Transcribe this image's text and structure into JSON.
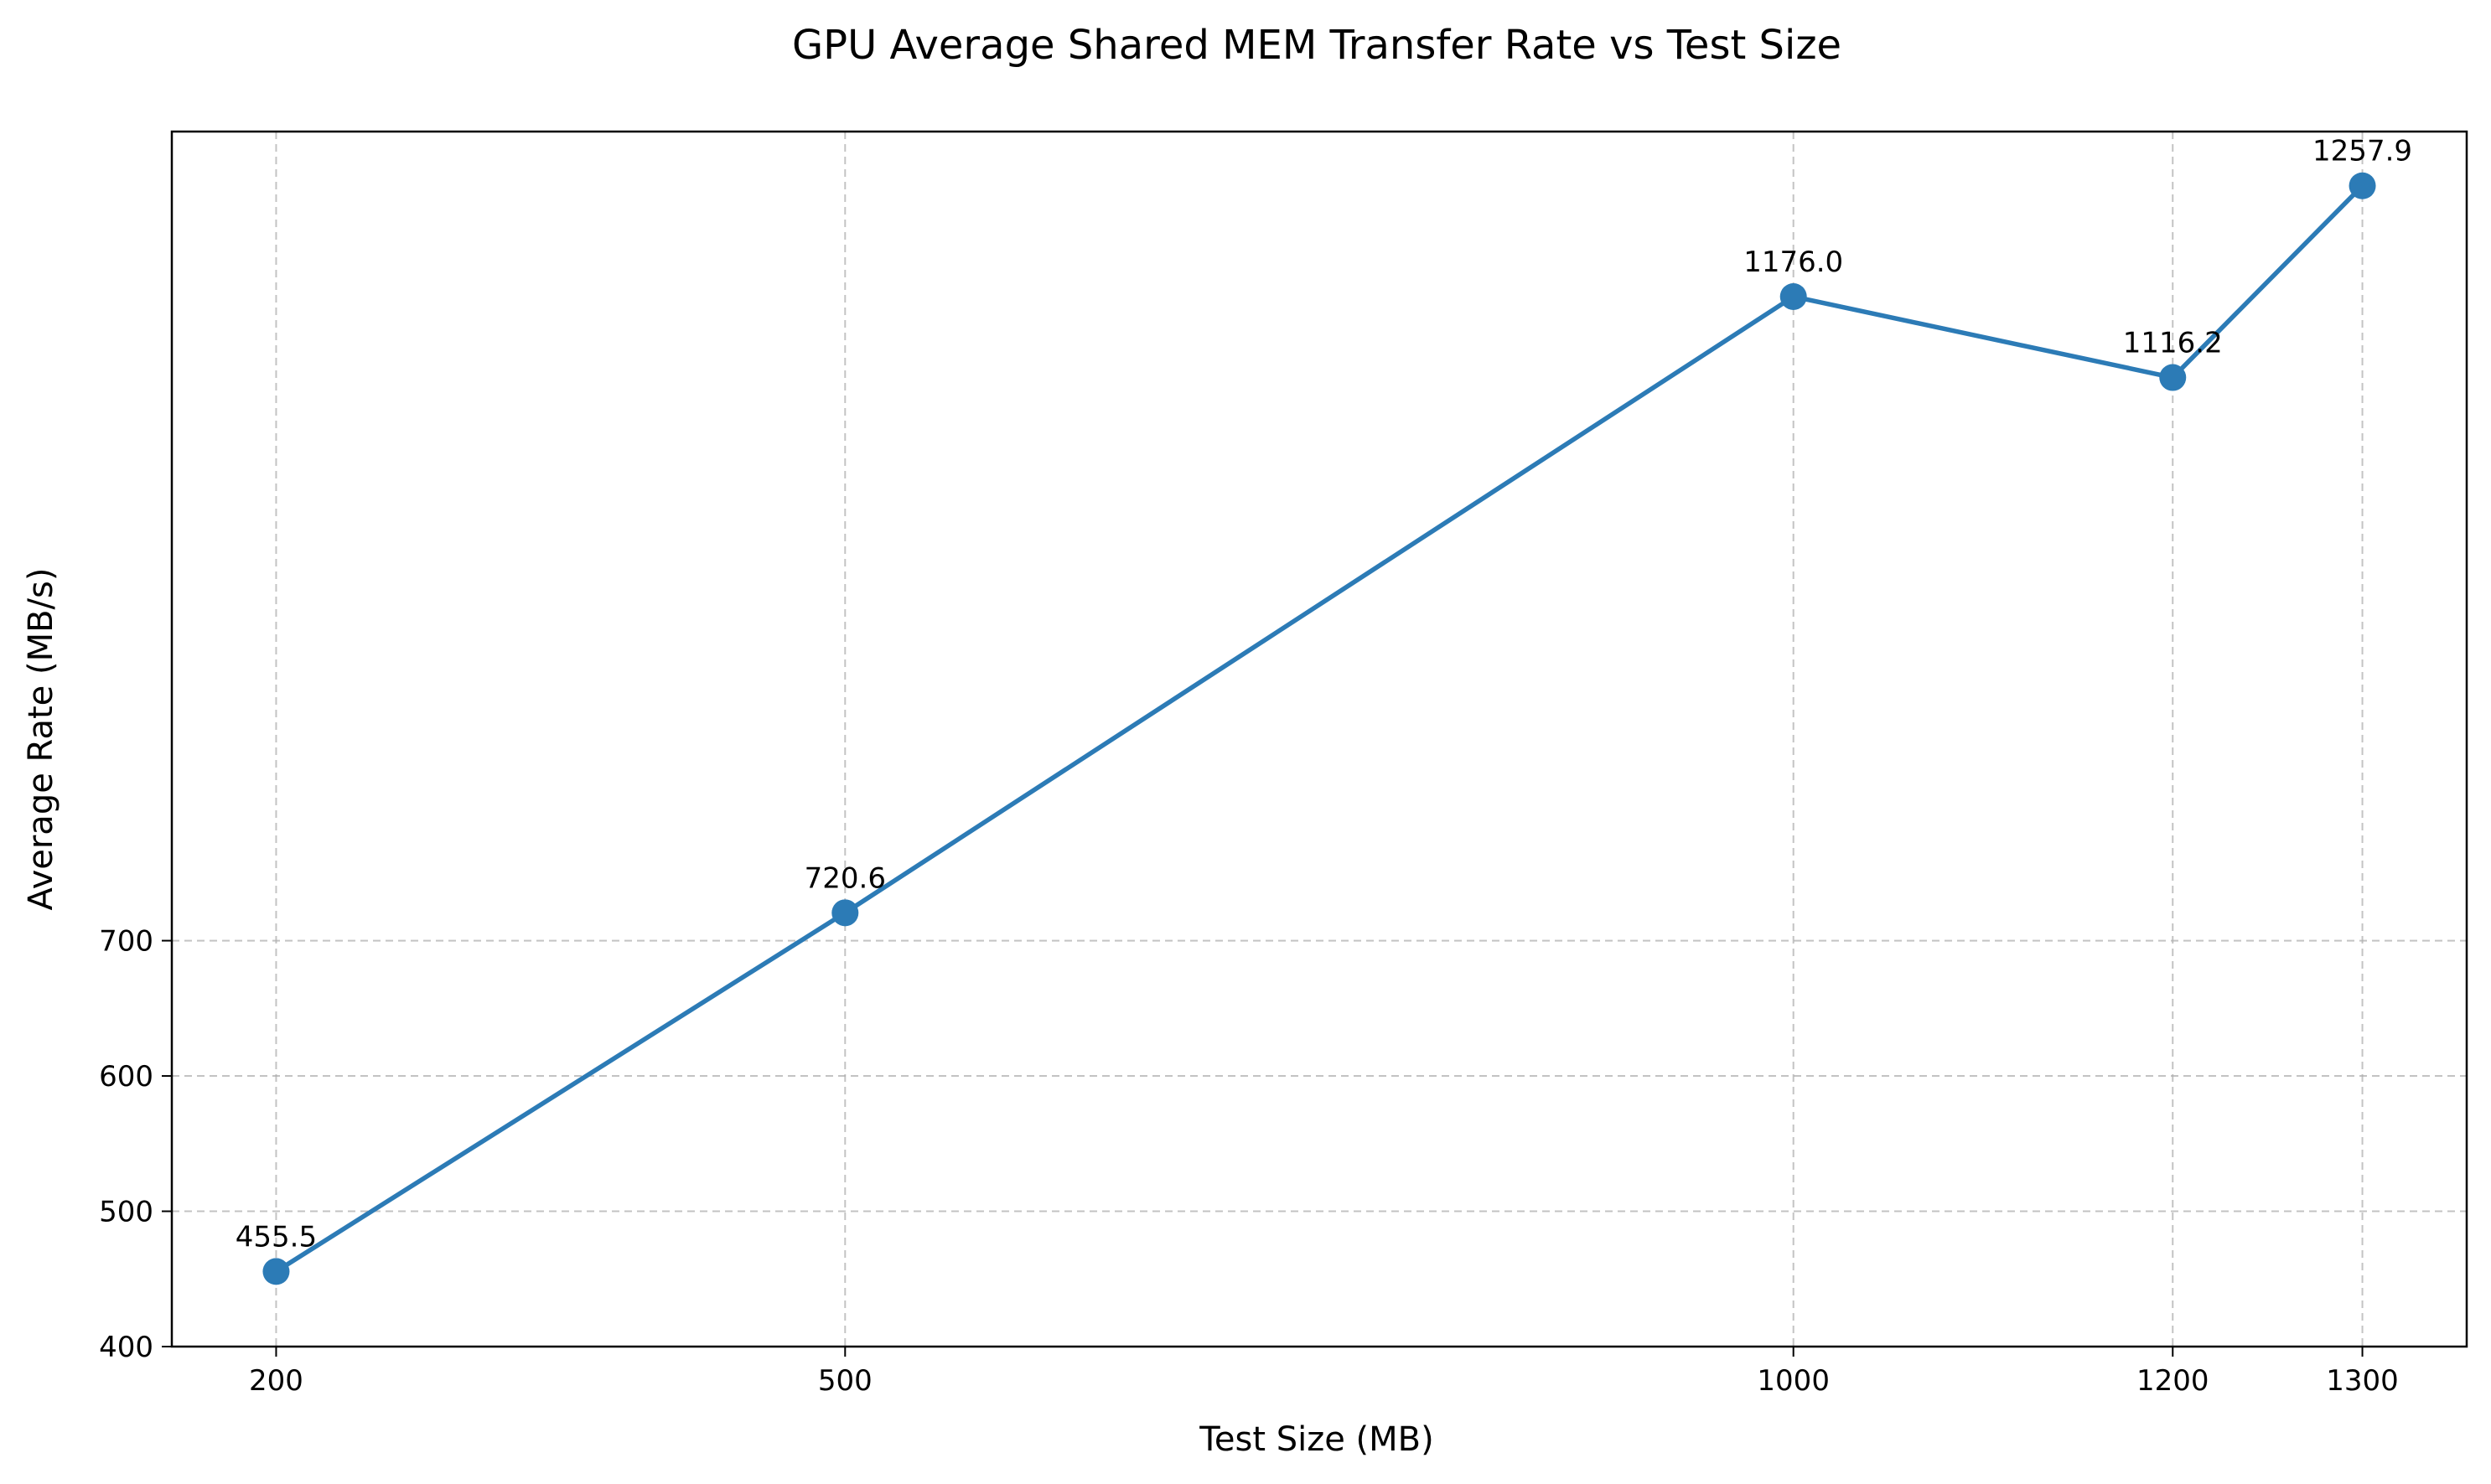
{
  "chart_data": {
    "type": "line",
    "title": "GPU Average Shared MEM Transfer Rate vs Test Size",
    "xlabel": "Test Size (MB)",
    "ylabel": "Average Rate (MB/s)",
    "x": [
      200,
      500,
      1000,
      1200,
      1300
    ],
    "xticks": [
      "200",
      "500",
      "1000",
      "1200",
      "1300"
    ],
    "xlim": [
      145,
      1355
    ],
    "yticks": [
      "400",
      "500",
      "600",
      "700"
    ],
    "ylim": [
      400,
      1298
    ],
    "grid": true,
    "series": [
      {
        "values": [
          455.5,
          720.6,
          1176.0,
          1116.2,
          1257.9
        ],
        "labels": [
          "455.5",
          "720.6",
          "1176.0",
          "1116.2",
          "1257.9"
        ],
        "color": "#2c7bb6",
        "marker": "circle"
      }
    ]
  }
}
